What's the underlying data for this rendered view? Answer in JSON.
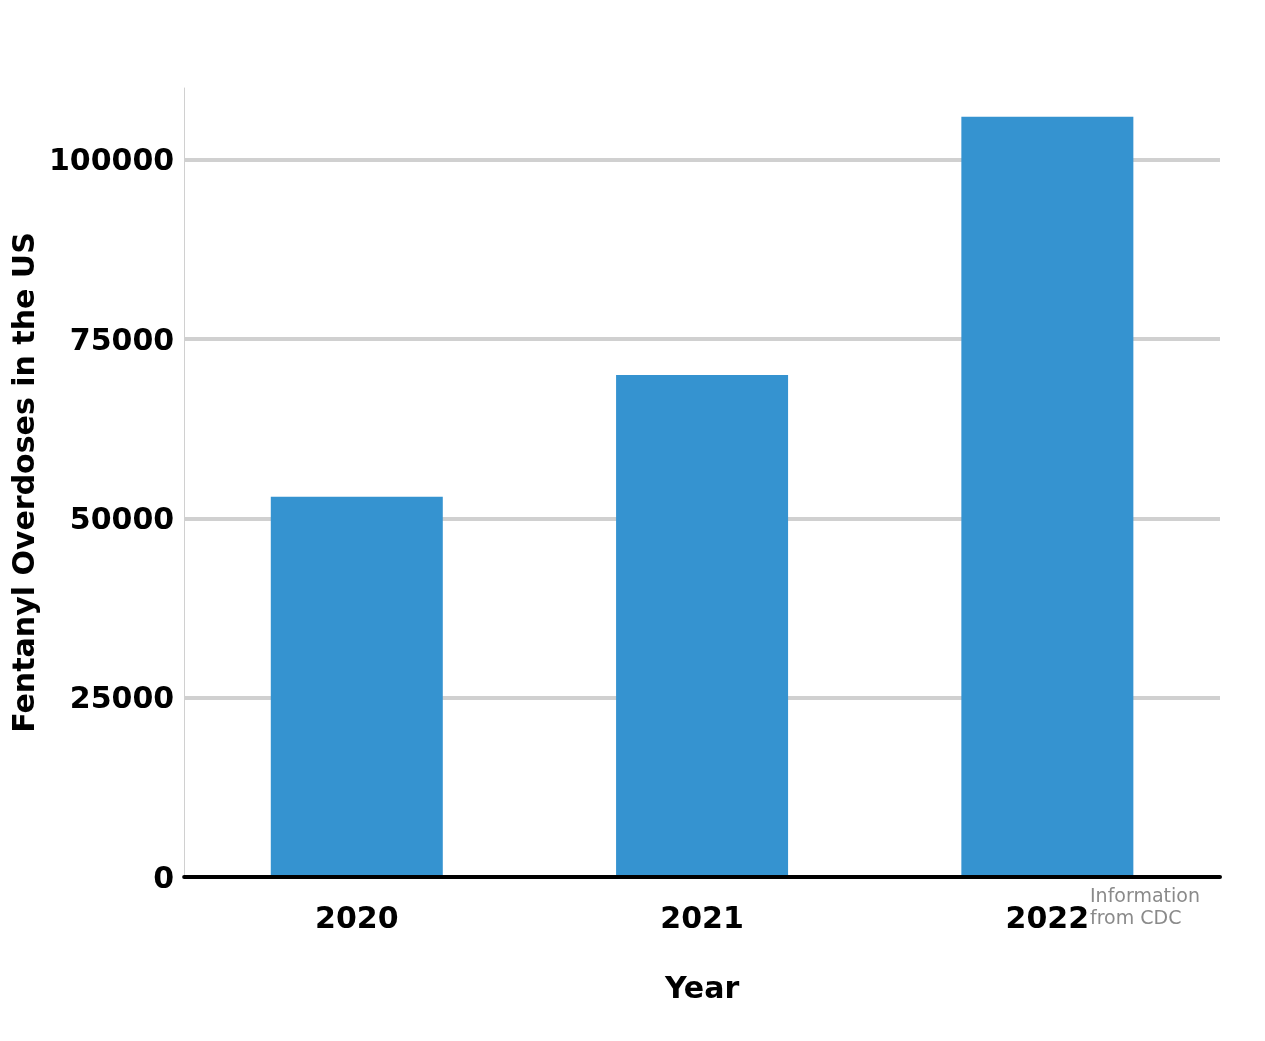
{
  "chart_data": {
    "type": "bar",
    "xlabel": "Year",
    "ylabel": "Fentanyl Overdoses in the US",
    "categories": [
      "2020",
      "2021",
      "2022"
    ],
    "values": [
      53000,
      70000,
      106000
    ],
    "color": "#3593d0",
    "ylim": [
      0,
      110000
    ],
    "yticks": [
      0,
      25000,
      50000,
      75000,
      100000
    ],
    "grid": "y",
    "annotations": [
      "Information from CDC"
    ]
  }
}
